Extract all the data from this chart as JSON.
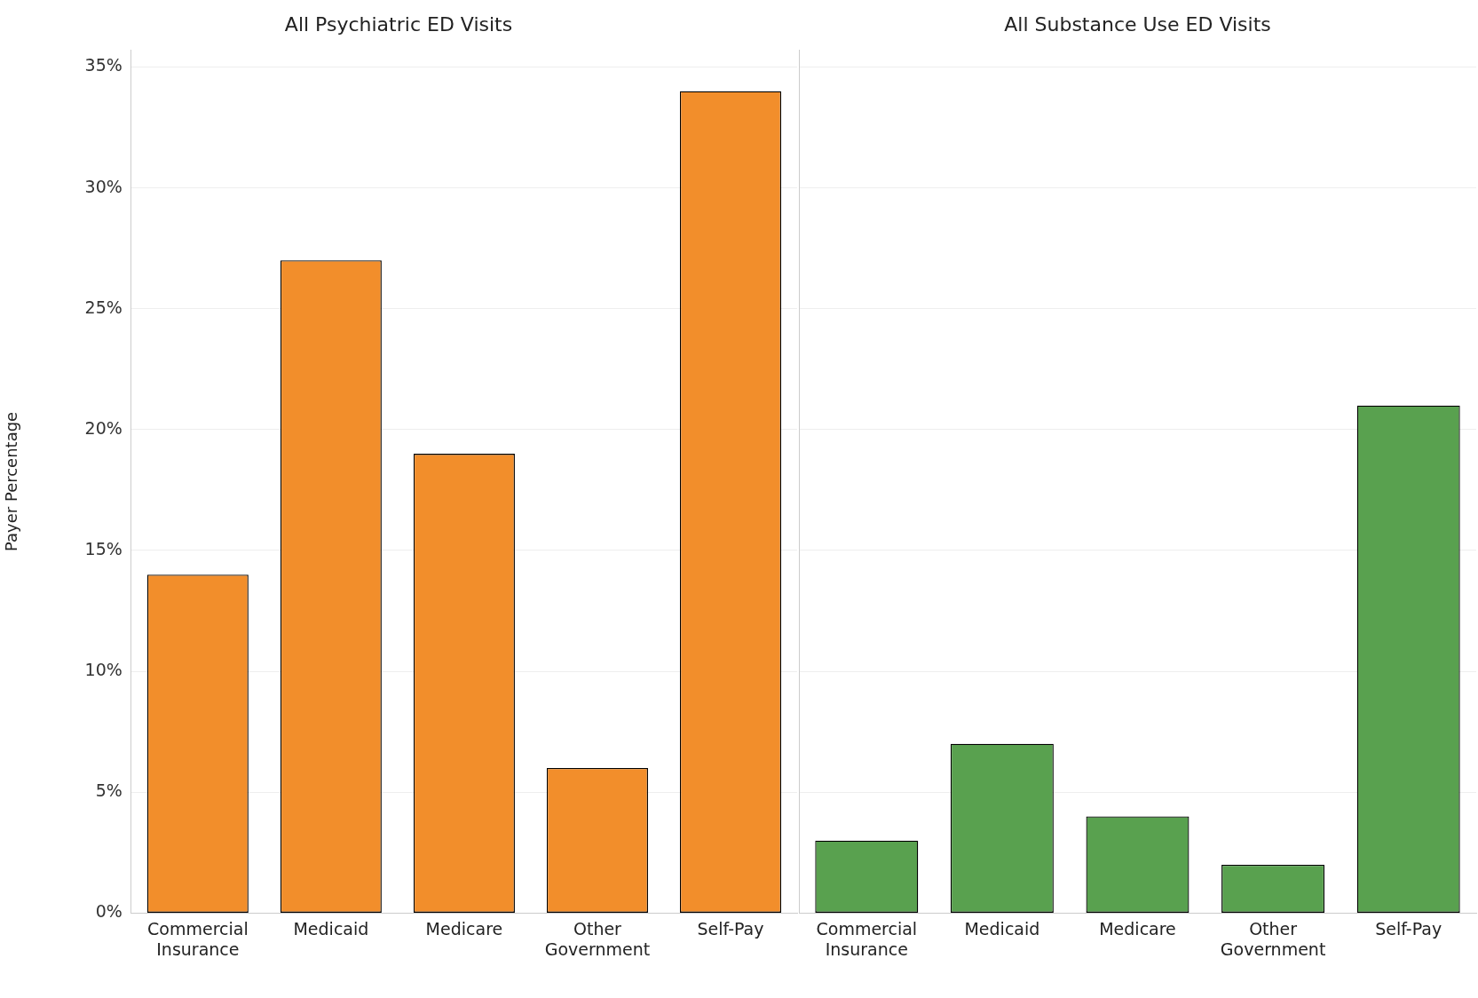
{
  "chart_data": [
    {
      "type": "bar",
      "title": "All Psychiatric ED Visits",
      "ylabel": "Payer Percentage",
      "categories": [
        "Commercial Insurance",
        "Medicaid",
        "Medicare",
        "Other Government",
        "Self-Pay"
      ],
      "values": [
        14,
        27,
        19,
        6,
        34
      ],
      "color": "#f28e2b",
      "ylim": [
        0,
        35.7
      ],
      "yticks": [
        {
          "value": 0,
          "label": "0%"
        },
        {
          "value": 5,
          "label": "5%"
        },
        {
          "value": 10,
          "label": "10%"
        },
        {
          "value": 15,
          "label": "15%"
        },
        {
          "value": 20,
          "label": "20%"
        },
        {
          "value": 25,
          "label": "25%"
        },
        {
          "value": 30,
          "label": "30%"
        },
        {
          "value": 35,
          "label": "35%"
        }
      ],
      "grid": "y"
    },
    {
      "type": "bar",
      "title": "All Substance Use ED Visits",
      "categories": [
        "Commercial Insurance",
        "Medicaid",
        "Medicare",
        "Other Government",
        "Self-Pay"
      ],
      "values": [
        3,
        7,
        4,
        2,
        21
      ],
      "color": "#59a14f",
      "ylim": [
        0,
        35.7
      ],
      "yticks": [
        {
          "value": 0,
          "label": null
        },
        {
          "value": 5,
          "label": null
        },
        {
          "value": 10,
          "label": null
        },
        {
          "value": 15,
          "label": null
        },
        {
          "value": 20,
          "label": null
        },
        {
          "value": 25,
          "label": null
        },
        {
          "value": 30,
          "label": null
        },
        {
          "value": 35,
          "label": null
        }
      ],
      "grid": "y",
      "tick_labels": "x"
    }
  ]
}
